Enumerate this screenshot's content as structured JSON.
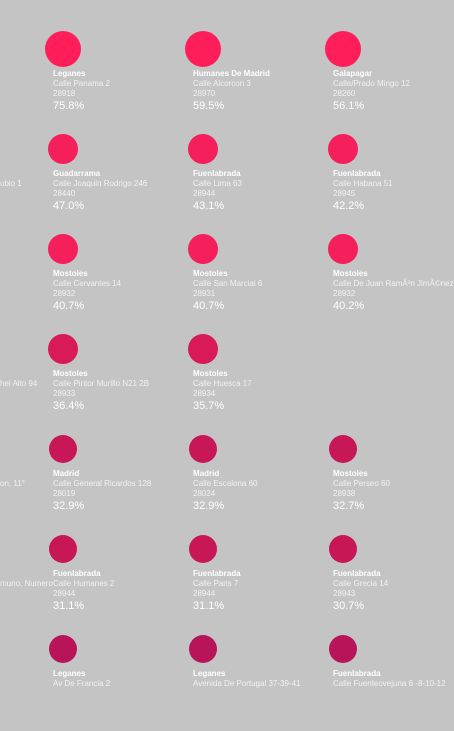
{
  "colors": {
    "background": "#c4c4c4",
    "dot_levels": [
      "#ff1e5a",
      "#f41f5b",
      "#d81a58",
      "#c71757",
      "#b8145a"
    ]
  },
  "edge_fragments": [
    "ubio 1",
    "hel Alto 94",
    "on, 11°",
    "muno, Numero"
  ],
  "stores": [
    {
      "city": "Leganes",
      "street": "Calle Panama 2",
      "zip": "28918",
      "pct": "75.8%",
      "level": 0
    },
    {
      "city": "Humanes De Madrid",
      "street": "Calle Alcorcon 3",
      "zip": "28970",
      "pct": "59.5%",
      "level": 0
    },
    {
      "city": "Galapagar",
      "street": "Calle/Prado Mingo 12",
      "zip": "28260",
      "pct": "56.1%",
      "level": 0
    },
    {
      "city": "Guadarrama",
      "street": "Calle Joaquin Rodrigo 246",
      "zip": "28440",
      "pct": "47.0%",
      "level": 1
    },
    {
      "city": "Fuenlabrada",
      "street": "Calle Lima 63",
      "zip": "28944",
      "pct": "43.1%",
      "level": 1
    },
    {
      "city": "Fuenlabrada",
      "street": "Calle Habana 51",
      "zip": "28945",
      "pct": "42.2%",
      "level": 1
    },
    {
      "city": "Mostoles",
      "street": "Calle Cervantes 14",
      "zip": "28932",
      "pct": "40.7%",
      "level": 1
    },
    {
      "city": "Mostoles",
      "street": "Calle San Marcial 6",
      "zip": "28931",
      "pct": "40.7%",
      "level": 1
    },
    {
      "city": "Mostoles",
      "street": "Calle De Juan RamÃ³n JimÃ©nez",
      "zip": "28932",
      "pct": "40.2%",
      "level": 1
    },
    {
      "city": "Mostoles",
      "street": "Calle Pintor Murillo N21 2B",
      "zip": "28933",
      "pct": "36.4%",
      "level": 2
    },
    {
      "city": "Mostoles",
      "street": "Calle Huesca 17",
      "zip": "28934",
      "pct": "35.7%",
      "level": 2
    },
    {
      "city": "",
      "street": "",
      "zip": "",
      "pct": "",
      "level": -1
    },
    {
      "city": "Madrid",
      "street": "Calle General Ricardos 128",
      "zip": "28019",
      "pct": "32.9%",
      "level": 3
    },
    {
      "city": "Madrid",
      "street": "Calle Escalona 60",
      "zip": "28024",
      "pct": "32.9%",
      "level": 3
    },
    {
      "city": "Mostoles",
      "street": "Calle Perseo 60",
      "zip": "28938",
      "pct": "32.7%",
      "level": 3
    },
    {
      "city": "Fuenlabrada",
      "street": "Calle Humanes 2",
      "zip": "28944",
      "pct": "31.1%",
      "level": 3
    },
    {
      "city": "Fuenlabrada",
      "street": "Calle Paris 7",
      "zip": "28944",
      "pct": "31.1%",
      "level": 3
    },
    {
      "city": "Fuenlabrada",
      "street": "Calle Grecia 14",
      "zip": "28943",
      "pct": "30.7%",
      "level": 3
    },
    {
      "city": "Leganes",
      "street": "Av De Francia 2",
      "zip": "",
      "pct": "",
      "level": 4
    },
    {
      "city": "Leganes",
      "street": "Avenida De Portugal 37-39-41",
      "zip": "",
      "pct": "",
      "level": 4
    },
    {
      "city": "Fuenlabrada",
      "street": "Calle Fuenteovejuna 6 -8-10-12",
      "zip": "",
      "pct": "",
      "level": 4
    }
  ]
}
